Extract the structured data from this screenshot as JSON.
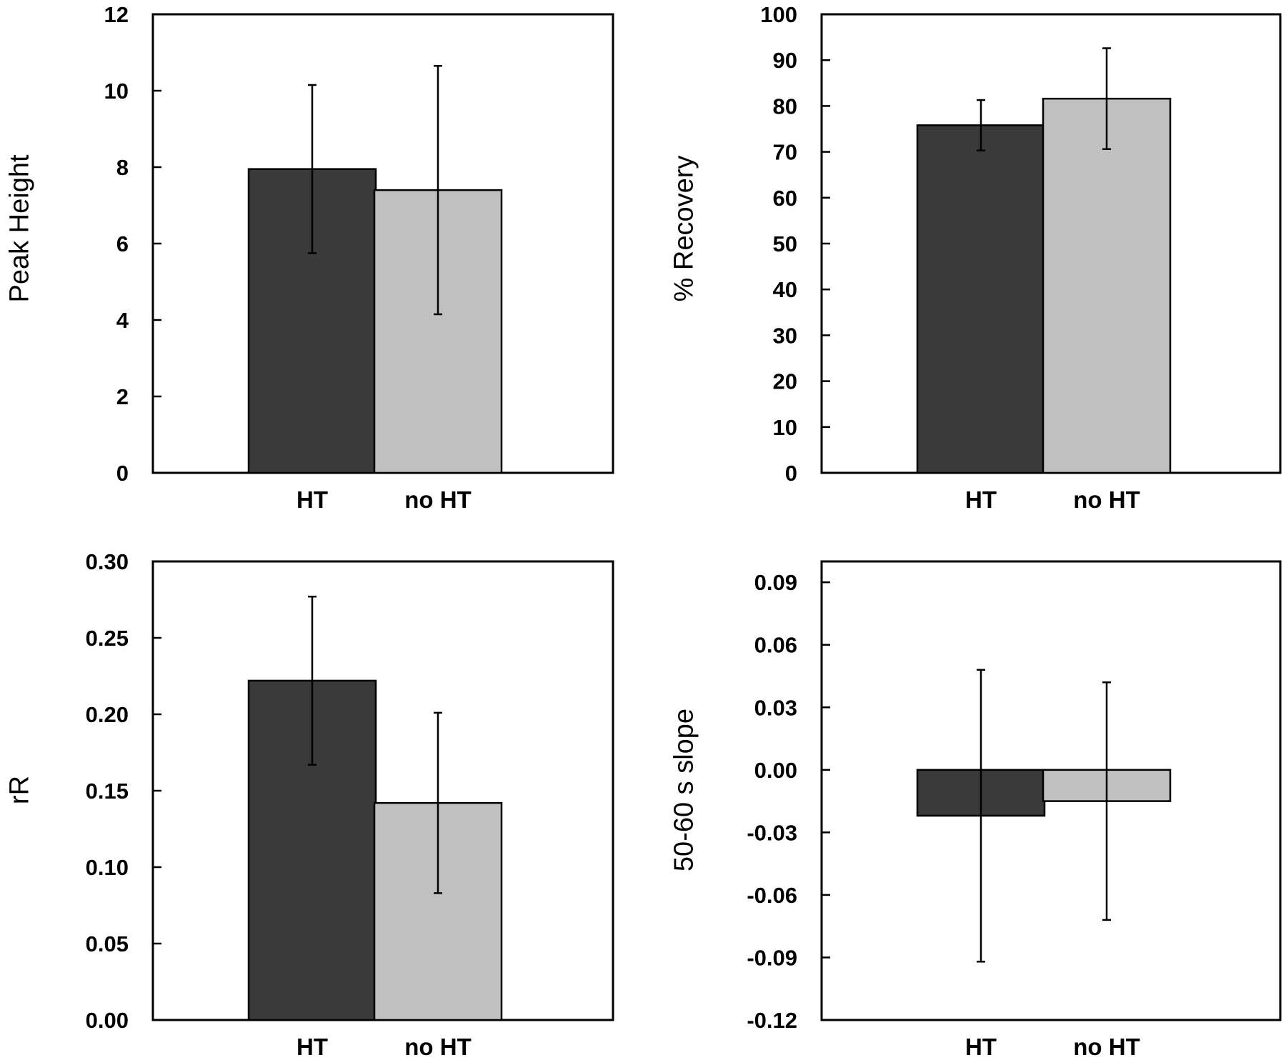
{
  "colors": {
    "HT": "#3a3a3a",
    "no HT": "#c0c0c0"
  },
  "chart_data": [
    {
      "type": "bar",
      "categories": [
        "HT",
        "no HT"
      ],
      "values": [
        7.95,
        7.4
      ],
      "error": [
        2.2,
        3.25
      ],
      "xlabel": "",
      "ylabel": "Peak Height",
      "ylim": [
        0,
        12
      ],
      "yticks": [
        "0",
        "2",
        "4",
        "6",
        "8",
        "10",
        "12"
      ],
      "ytick_values": [
        0,
        2,
        4,
        6,
        8,
        10,
        12
      ],
      "grid": false
    },
    {
      "type": "bar",
      "categories": [
        "HT",
        "no HT"
      ],
      "values": [
        75.8,
        81.6
      ],
      "error": [
        5.5,
        11.0
      ],
      "xlabel": "",
      "ylabel": "% Recovery",
      "ylim": [
        0,
        100
      ],
      "yticks": [
        "0",
        "10",
        "20",
        "30",
        "40",
        "50",
        "60",
        "70",
        "80",
        "90",
        "100"
      ],
      "ytick_values": [
        0,
        10,
        20,
        30,
        40,
        50,
        60,
        70,
        80,
        90,
        100
      ],
      "grid": false
    },
    {
      "type": "bar",
      "categories": [
        "HT",
        "no HT"
      ],
      "values": [
        0.222,
        0.142
      ],
      "error": [
        0.055,
        0.059
      ],
      "xlabel": "",
      "ylabel": "rR",
      "ylim": [
        0,
        0.3
      ],
      "yticks": [
        "0.00",
        "0.05",
        "0.10",
        "0.15",
        "0.20",
        "0.25",
        "0.30"
      ],
      "ytick_values": [
        0,
        0.05,
        0.1,
        0.15,
        0.2,
        0.25,
        0.3
      ],
      "grid": false
    },
    {
      "type": "bar",
      "categories": [
        "HT",
        "no HT"
      ],
      "values": [
        -0.022,
        -0.015
      ],
      "error": [
        0.07,
        0.057
      ],
      "xlabel": "",
      "ylabel": "50-60 s slope",
      "ylim": [
        -0.12,
        0.1
      ],
      "yticks": [
        "-0.12",
        "-0.09",
        "-0.06",
        "-0.03",
        "0.00",
        "0.03",
        "0.06",
        "0.09"
      ],
      "ytick_values": [
        -0.12,
        -0.09,
        -0.06,
        -0.03,
        0,
        0.03,
        0.06,
        0.09
      ],
      "grid": false
    }
  ]
}
